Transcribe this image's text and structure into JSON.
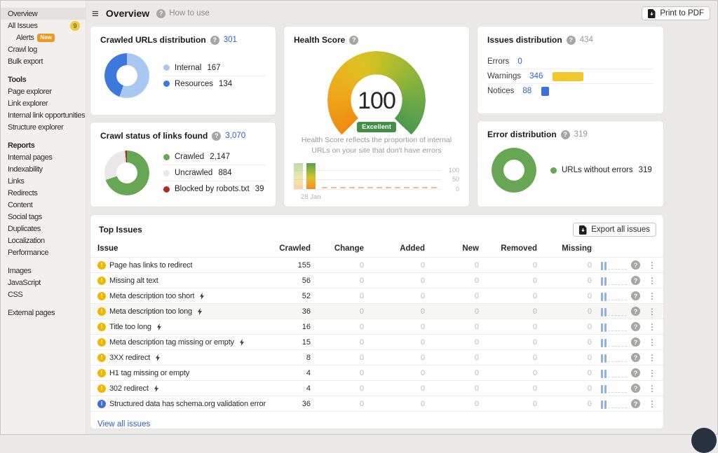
{
  "sidebar": {
    "items": [
      {
        "label": "Overview",
        "selected": true
      },
      {
        "label": "All Issues",
        "badge": "9"
      },
      {
        "label": "Alerts",
        "badge_new": "New",
        "indent": true
      },
      {
        "label": "Crawl log"
      },
      {
        "label": "Bulk export"
      },
      {
        "label": "Tools",
        "header": true
      },
      {
        "label": "Page explorer"
      },
      {
        "label": "Link explorer"
      },
      {
        "label": "Internal link opportunities"
      },
      {
        "label": "Structure explorer"
      },
      {
        "label": "Reports",
        "header": true
      },
      {
        "label": "Internal pages"
      },
      {
        "label": "Indexability"
      },
      {
        "label": "Links"
      },
      {
        "label": "Redirects"
      },
      {
        "label": "Content"
      },
      {
        "label": "Social tags"
      },
      {
        "label": "Duplicates"
      },
      {
        "label": "Localization"
      },
      {
        "label": "Performance"
      },
      {
        "label": "Images",
        "gap": true
      },
      {
        "label": "JavaScript"
      },
      {
        "label": "CSS"
      },
      {
        "label": "External pages",
        "gap": true
      }
    ]
  },
  "topbar": {
    "title": "Overview",
    "help": "How to use",
    "print_label": "Print to PDF"
  },
  "cards": {
    "crawled_urls": {
      "title": "Crawled URLs distribution",
      "total": "301",
      "legend": [
        {
          "label": "Internal",
          "value": "167",
          "color": "#a9c8ef"
        },
        {
          "label": "Resources",
          "value": "134",
          "color": "#3d78dd"
        }
      ]
    },
    "crawl_status": {
      "title": "Crawl status of links found",
      "total": "3,070",
      "legend": [
        {
          "label": "Crawled",
          "value": "2,147",
          "color": "#67a653"
        },
        {
          "label": "Uncrawled",
          "value": "884",
          "color": "#e9e8e6"
        },
        {
          "label": "Blocked by robots.txt",
          "value": "39",
          "color": "#b8281a"
        }
      ]
    },
    "health_score": {
      "title": "Health Score",
      "score": "100",
      "rating": "Excellent",
      "description": "Health Score reflects the proportion of internal URLs on your site that don't have errors",
      "axis": [
        "100",
        "50",
        "0"
      ],
      "date": "28 Jan"
    },
    "issues_distribution": {
      "title": "Issues distribution",
      "total": "434",
      "rows": [
        {
          "label": "Errors",
          "value": "0",
          "color": "#d54b3d"
        },
        {
          "label": "Warnings",
          "value": "346",
          "color": "#f0c72e"
        },
        {
          "label": "Notices",
          "value": "88",
          "color": "#3a70d9"
        }
      ]
    },
    "error_distribution": {
      "title": "Error distribution",
      "total": "319",
      "legend": [
        {
          "label": "URLs without errors",
          "value": "319",
          "color": "#67a653"
        }
      ]
    }
  },
  "top_issues": {
    "title": "Top Issues",
    "export_label": "Export all issues",
    "columns": [
      "Issue",
      "Crawled",
      "Change",
      "Added",
      "New",
      "Removed",
      "Missing"
    ],
    "view_all": "View all issues",
    "rows": [
      {
        "issue": "Page has links to redirect",
        "type": "warning",
        "crawled": "155",
        "change": "0",
        "added": "0",
        "new": "0",
        "removed": "0",
        "missing": "0"
      },
      {
        "issue": "Missing alt text",
        "type": "warning",
        "crawled": "56",
        "change": "0",
        "added": "0",
        "new": "0",
        "removed": "0",
        "missing": "0"
      },
      {
        "issue": "Meta description too short",
        "type": "warning",
        "flash": true,
        "crawled": "52",
        "change": "0",
        "added": "0",
        "new": "0",
        "removed": "0",
        "missing": "0"
      },
      {
        "issue": "Meta description too long",
        "type": "warning",
        "flash": true,
        "hl": true,
        "crawled": "36",
        "change": "0",
        "added": "0",
        "new": "0",
        "removed": "0",
        "missing": "0"
      },
      {
        "issue": "Title too long",
        "type": "warning",
        "flash": true,
        "crawled": "16",
        "change": "0",
        "added": "0",
        "new": "0",
        "removed": "0",
        "missing": "0"
      },
      {
        "issue": "Meta description tag missing or empty",
        "type": "warning",
        "flash": true,
        "crawled": "15",
        "change": "0",
        "added": "0",
        "new": "0",
        "removed": "0",
        "missing": "0"
      },
      {
        "issue": "3XX redirect",
        "type": "warning",
        "flash": true,
        "crawled": "8",
        "change": "0",
        "added": "0",
        "new": "0",
        "removed": "0",
        "missing": "0"
      },
      {
        "issue": "H1 tag missing or empty",
        "type": "warning",
        "crawled": "4",
        "change": "0",
        "added": "0",
        "new": "0",
        "removed": "0",
        "missing": "0"
      },
      {
        "issue": "302 redirect",
        "type": "warning",
        "flash": true,
        "crawled": "4",
        "change": "0",
        "added": "0",
        "new": "0",
        "removed": "0",
        "missing": "0"
      },
      {
        "issue": "Structured data has schema.org validation error",
        "type": "info",
        "crawled": "36",
        "change": "0",
        "added": "0",
        "new": "0",
        "removed": "0",
        "missing": "0"
      }
    ]
  }
}
